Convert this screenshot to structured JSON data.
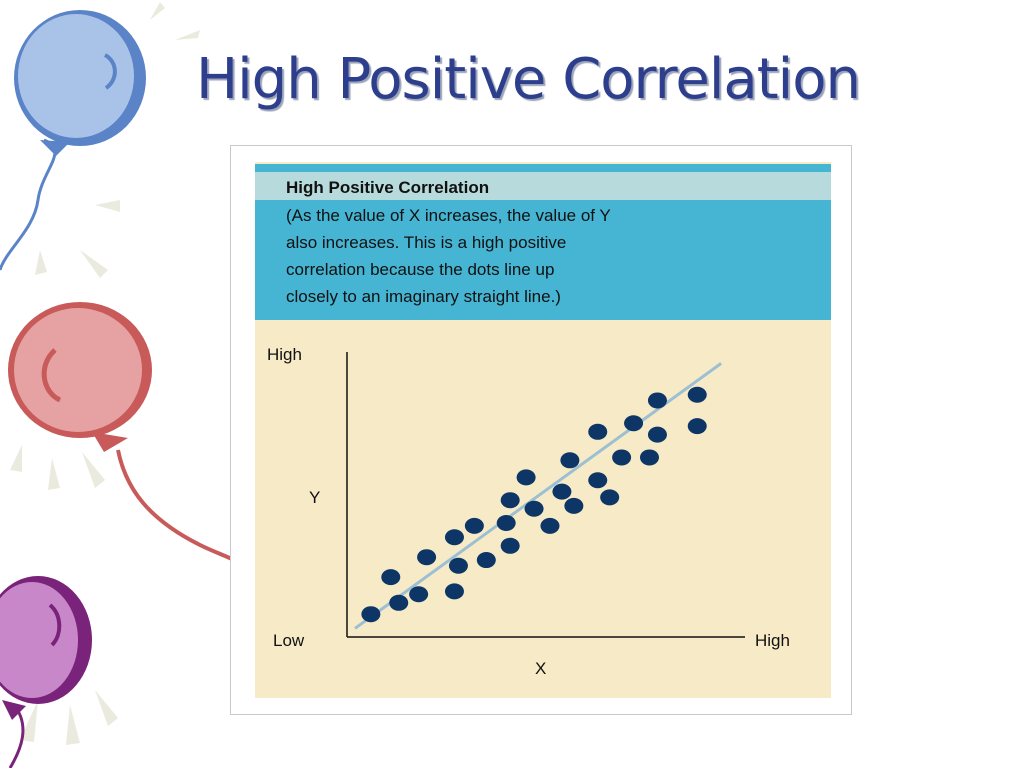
{
  "slide": {
    "title": "High Positive Correlation"
  },
  "colors": {
    "title_text": "#2d3f8c",
    "panel_bg": "#f7ebc7",
    "caption_bg": "#45b5d3",
    "caption_title_bg": "#b7dbdc",
    "dot": "#0d3566",
    "trend_line": "#9dbfd3",
    "balloon_blue": "#a9c2e8",
    "balloon_red": "#e6a2a2",
    "balloon_purple": "#c887c8"
  },
  "figure": {
    "caption_title": "High Positive Correlation",
    "caption_lines": [
      "(As the value of X increases, the value of Y",
      "also increases. This is a high positive",
      "correlation because the dots line up",
      "closely to an imaginary straight line.)"
    ]
  },
  "chart_data": {
    "type": "scatter",
    "title": "High Positive Correlation",
    "xlabel": "X",
    "ylabel": "Y",
    "x_tick_labels": {
      "low": "Low",
      "high": "High"
    },
    "y_tick_labels": {
      "low": "Low",
      "high": "High"
    },
    "xlim": [
      0,
      100
    ],
    "ylim": [
      0,
      100
    ],
    "grid": false,
    "trend_line": {
      "from": [
        2,
        3
      ],
      "to": [
        94,
        96
      ]
    },
    "points": [
      {
        "x": 6,
        "y": 8
      },
      {
        "x": 11,
        "y": 21
      },
      {
        "x": 13,
        "y": 12
      },
      {
        "x": 18,
        "y": 15
      },
      {
        "x": 20,
        "y": 28
      },
      {
        "x": 27,
        "y": 16
      },
      {
        "x": 28,
        "y": 25
      },
      {
        "x": 27,
        "y": 35
      },
      {
        "x": 32,
        "y": 39
      },
      {
        "x": 35,
        "y": 27
      },
      {
        "x": 40,
        "y": 40
      },
      {
        "x": 41,
        "y": 32
      },
      {
        "x": 41,
        "y": 48
      },
      {
        "x": 45,
        "y": 56
      },
      {
        "x": 47,
        "y": 45
      },
      {
        "x": 51,
        "y": 39
      },
      {
        "x": 54,
        "y": 51
      },
      {
        "x": 56,
        "y": 62
      },
      {
        "x": 57,
        "y": 46
      },
      {
        "x": 63,
        "y": 55
      },
      {
        "x": 63,
        "y": 72
      },
      {
        "x": 66,
        "y": 49
      },
      {
        "x": 69,
        "y": 63
      },
      {
        "x": 72,
        "y": 75
      },
      {
        "x": 76,
        "y": 63
      },
      {
        "x": 78,
        "y": 71
      },
      {
        "x": 78,
        "y": 83
      },
      {
        "x": 88,
        "y": 85
      },
      {
        "x": 88,
        "y": 74
      }
    ]
  }
}
